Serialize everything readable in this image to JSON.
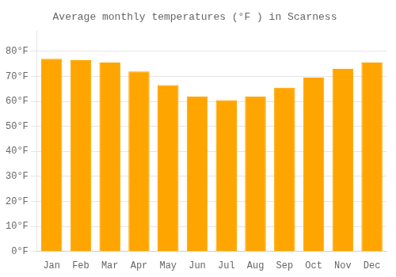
{
  "chart_data": {
    "type": "bar",
    "title": "Average monthly temperatures (°F ) in Scarness",
    "categories": [
      "Jan",
      "Feb",
      "Mar",
      "Apr",
      "May",
      "Jun",
      "Jul",
      "Aug",
      "Sep",
      "Oct",
      "Nov",
      "Dec"
    ],
    "values": [
      77,
      76.5,
      75.5,
      72,
      66.5,
      62,
      60.5,
      62,
      65.5,
      69.5,
      73,
      75.5
    ],
    "color": "#FFA500",
    "ylim": [
      0,
      88
    ],
    "yticks": [
      {
        "value": 0,
        "label": "0°F"
      },
      {
        "value": 10,
        "label": "10°F"
      },
      {
        "value": 20,
        "label": "20°F"
      },
      {
        "value": 30,
        "label": "30°F"
      },
      {
        "value": 40,
        "label": "40°F"
      },
      {
        "value": 50,
        "label": "50°F"
      },
      {
        "value": 60,
        "label": "60°F"
      },
      {
        "value": 70,
        "label": "70°F"
      },
      {
        "value": 80,
        "label": "80°F"
      }
    ],
    "grid": true
  }
}
